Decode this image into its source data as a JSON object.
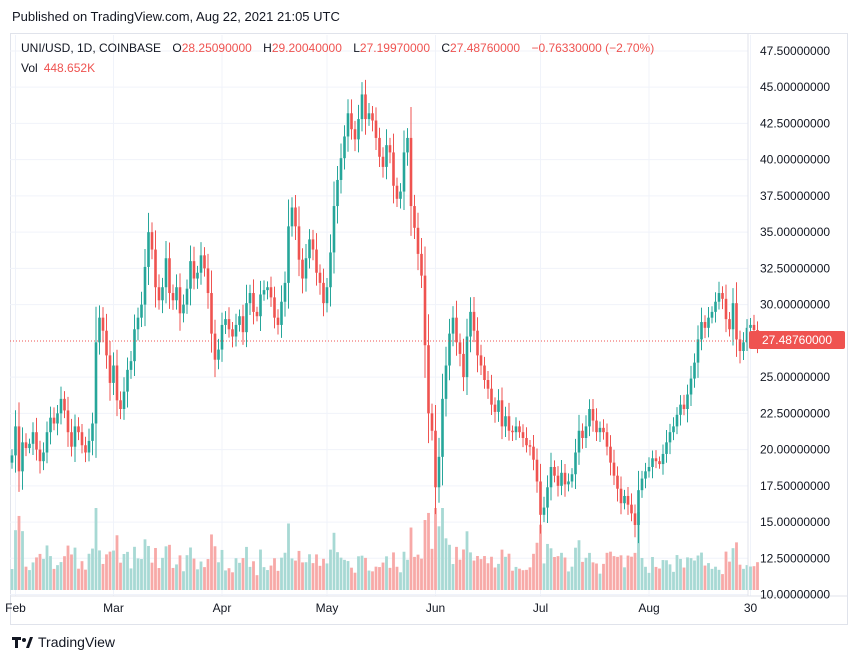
{
  "header": {
    "published": "Published on TradingView.com, Aug 22, 2021 21:05 UTC"
  },
  "legend": {
    "symbol": "UNI/USD, 1D, COINBASE",
    "open_label": "O",
    "open": "28.25090000",
    "high_label": "H",
    "high": "29.20040000",
    "low_label": "L",
    "low": "27.19970000",
    "close_label": "C",
    "close": "27.48760000",
    "change": "−0.76330000 (−2.70%)",
    "vol_label": "Vol",
    "vol": "448.652K"
  },
  "price_tag": "27.48760000",
  "footer": {
    "brand": "TradingView"
  },
  "colors": {
    "up": "#26a69a",
    "down": "#ef5350",
    "vol_up": "#a7d9d4",
    "vol_down": "#f7a9a7",
    "grid": "#f0f3fa"
  },
  "chart_data": {
    "type": "candlestick",
    "title": "UNI/USD, 1D, COINBASE",
    "y_ticks": [
      "47.50000000",
      "45.00000000",
      "42.50000000",
      "40.00000000",
      "37.50000000",
      "35.00000000",
      "32.50000000",
      "30.00000000",
      "25.00000000",
      "22.50000000",
      "20.00000000",
      "17.50000000",
      "15.00000000",
      "12.50000000",
      "10.00000000"
    ],
    "y_tick_values": [
      47.5,
      45,
      42.5,
      40,
      37.5,
      35,
      32.5,
      30,
      25,
      22.5,
      20,
      17.5,
      15,
      12.5,
      10
    ],
    "ylim": [
      9.9,
      48.6
    ],
    "x_ticks": [
      {
        "label": "Feb",
        "day": 0
      },
      {
        "label": "Mar",
        "day": 28
      },
      {
        "label": "Apr",
        "day": 59
      },
      {
        "label": "May",
        "day": 89
      },
      {
        "label": "Jun",
        "day": 120
      },
      {
        "label": "Jul",
        "day": 150
      },
      {
        "label": "Aug",
        "day": 181
      },
      {
        "label": "30",
        "day": 210
      }
    ],
    "start_day": -1,
    "closes": [
      19.6,
      21.6,
      18.5,
      20.5,
      20.1,
      20.4,
      21.2,
      20.0,
      19.2,
      19.8,
      21.2,
      22.2,
      21.8,
      22.5,
      23.5,
      22.7,
      21.2,
      20.2,
      21.6,
      21.2,
      20.3,
      19.8,
      20.6,
      21.8,
      27.4,
      29.1,
      28.2,
      26.5,
      24.6,
      25.8,
      23.4,
      22.8,
      24.0,
      25.5,
      26.1,
      28.3,
      29.1,
      30.0,
      32.6,
      35.0,
      33.8,
      31.2,
      30.3,
      31.2,
      33.2,
      30.8,
      30.3,
      31.2,
      29.4,
      30.0,
      31.1,
      33.0,
      31.8,
      32.2,
      33.4,
      32.5,
      30.8,
      28.0,
      26.2,
      26.9,
      28.6,
      29.0,
      28.3,
      27.8,
      28.6,
      29.2,
      28.1,
      30.1,
      30.8,
      29.5,
      29.2,
      30.7,
      31.0,
      31.2,
      30.5,
      29.1,
      28.6,
      30.2,
      31.5,
      35.4,
      36.7,
      35.4,
      33.1,
      31.8,
      33.2,
      34.5,
      33.8,
      32.2,
      31.5,
      30.1,
      31.2,
      33.6,
      36.8,
      38.6,
      40.1,
      41.6,
      43.2,
      42.1,
      41.4,
      42.8,
      44.5,
      42.8,
      43.2,
      42.7,
      41.5,
      40.2,
      39.5,
      41.0,
      40.5,
      38.2,
      37.3,
      37.8,
      40.5,
      41.5,
      36.8,
      35.3,
      33.5,
      32.0,
      27.2,
      22.5,
      21.3,
      17.4,
      19.5,
      23.5,
      25.8,
      28.0,
      29.1,
      27.4,
      26.6,
      25.0,
      27.8,
      29.5,
      28.2,
      26.5,
      25.8,
      24.8,
      24.2,
      23.1,
      22.6,
      23.4,
      21.6,
      22.3,
      21.3,
      21.2,
      21.6,
      21.2,
      20.8,
      20.3,
      20.2,
      19.3,
      17.8,
      15.5,
      16.0,
      17.4,
      18.8,
      18.2,
      17.5,
      18.4,
      17.6,
      17.8,
      18.3,
      19.8,
      21.3,
      20.8,
      21.6,
      22.8,
      22.0,
      21.2,
      21.5,
      21.2,
      20.2,
      19.1,
      18.2,
      17.3,
      16.3,
      16.8,
      16.2,
      15.6,
      14.8,
      17.2,
      18.0,
      18.5,
      18.8,
      19.4,
      19.2,
      19.0,
      19.7,
      20.5,
      21.2,
      21.6,
      22.4,
      23.1,
      22.8,
      23.8,
      24.9,
      26.0,
      27.6,
      28.8,
      28.4,
      29.1,
      29.5,
      30.2,
      30.8,
      30.4,
      29.0,
      28.3,
      30.1,
      27.6,
      26.8,
      27.4,
      28.4,
      28.6,
      28.25,
      27.4876
    ],
    "volume": {
      "current": "448.652K",
      "ylim": [
        0,
        6
      ]
    }
  }
}
